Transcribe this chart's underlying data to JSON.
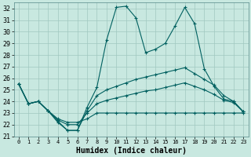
{
  "title": "",
  "xlabel": "Humidex (Indice chaleur)",
  "ylabel": "",
  "background_color": "#c8e8e0",
  "grid_color": "#a0c8c0",
  "line_color": "#006060",
  "xlim": [
    -0.5,
    23.5
  ],
  "ylim": [
    21,
    32.5
  ],
  "xticks": [
    0,
    1,
    2,
    3,
    4,
    5,
    6,
    7,
    8,
    9,
    10,
    11,
    12,
    13,
    14,
    15,
    16,
    17,
    18,
    19,
    20,
    21,
    22,
    23
  ],
  "yticks": [
    21,
    22,
    23,
    24,
    25,
    26,
    27,
    28,
    29,
    30,
    31,
    32
  ],
  "series": [
    [
      25.5,
      23.8,
      24.0,
      23.2,
      22.2,
      21.5,
      21.5,
      23.5,
      25.2,
      29.3,
      32.1,
      32.2,
      31.2,
      28.2,
      28.5,
      29.0,
      30.5,
      32.1,
      30.7,
      26.8,
      25.3,
      24.2,
      24.0,
      23.1
    ],
    [
      25.5,
      23.8,
      24.0,
      23.2,
      22.3,
      21.5,
      21.5,
      23.2,
      24.5,
      25.0,
      25.3,
      25.6,
      25.9,
      26.1,
      26.3,
      26.5,
      26.7,
      26.9,
      26.4,
      25.9,
      25.4,
      24.5,
      24.0,
      23.1
    ],
    [
      25.5,
      23.8,
      24.0,
      23.2,
      22.4,
      22.0,
      22.0,
      23.0,
      23.8,
      24.1,
      24.3,
      24.5,
      24.7,
      24.9,
      25.0,
      25.2,
      25.4,
      25.6,
      25.3,
      25.0,
      24.6,
      24.1,
      23.9,
      23.1
    ],
    [
      25.5,
      23.8,
      24.0,
      23.2,
      22.5,
      22.2,
      22.2,
      22.5,
      23.0,
      23.0,
      23.0,
      23.0,
      23.0,
      23.0,
      23.0,
      23.0,
      23.0,
      23.0,
      23.0,
      23.0,
      23.0,
      23.0,
      23.0,
      23.0
    ]
  ],
  "tick_fontsize": 6,
  "xlabel_fontsize": 7,
  "xlabel_fontweight": "bold",
  "marker": "+",
  "markersize": 3,
  "linewidth": 0.8
}
